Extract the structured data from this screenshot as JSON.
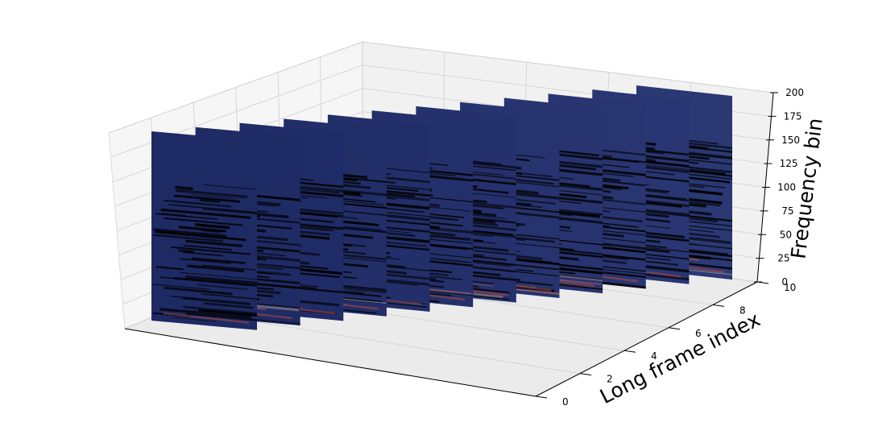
{
  "chart_data": {
    "type": "heatmap",
    "title": "",
    "zlabel": "Frequency bin",
    "ylabel": "Long frame index",
    "xlabel": "",
    "z_ticks": [
      0,
      25,
      50,
      75,
      100,
      125,
      150,
      175,
      200
    ],
    "y_ticks": [
      0,
      2,
      4,
      6,
      8,
      10
    ],
    "x_ticks": [],
    "zlim": [
      0,
      200
    ],
    "ylim": [
      0,
      10
    ],
    "grid": true,
    "panel_count": 12,
    "colormap": "coolwarm",
    "colors": {
      "low": "#233069",
      "mid": "#7a8aa0",
      "high": "#b44b3a",
      "pane_light": "#f6f6f6",
      "pane_mid": "#f1f1f1",
      "pane_dark": "#ebebeb"
    }
  }
}
